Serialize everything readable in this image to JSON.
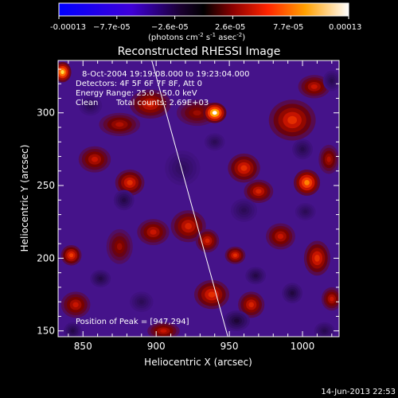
{
  "chart_data": {
    "type": "heatmap",
    "title": "Reconstructed RHESSI Image",
    "xlabel": "Heliocentric X (arcsec)",
    "ylabel": "Heliocentric Y (arcsec)",
    "xlim": [
      833,
      1025
    ],
    "ylim": [
      146,
      336
    ],
    "x_ticks": [
      850,
      900,
      950,
      1000
    ],
    "y_ticks": [
      150,
      200,
      250,
      300
    ],
    "colorbar": {
      "min": -0.00013,
      "max": 0.00013,
      "tick_labels": [
        "-0.00013",
        "−7.7e-05",
        "−2.6e-05",
        "2.6e-05",
        "7.7e-05",
        "0.00013"
      ],
      "unit_main": "(photons cm",
      "unit_exp1": "-2",
      "unit_mid": " s",
      "unit_exp2": "-1",
      "unit_mid2": " asec",
      "unit_exp3": "-2",
      "unit_end": ")"
    },
    "annotations": {
      "time_range": "8-Oct-2004 19:19:08.000 to 19:23:04.000",
      "detectors": "Detectors: 4F 5F 6F 7F 8F, Att 0",
      "energy_range": "Energy Range: 25.0 - 50.0 keV",
      "clean": "Clean",
      "total_counts": "Total counts: 2.69E+03",
      "peak_position": "Position of Peak = [947,294]"
    },
    "peak": [
      947,
      294
    ],
    "limb_line": [
      [
        897,
        336
      ],
      [
        949,
        146
      ]
    ],
    "features": [
      {
        "x": 940,
        "y": 300,
        "sx": 8,
        "sy": 7,
        "v": 1.0
      },
      {
        "x": 928,
        "y": 300,
        "sx": 14,
        "sy": 9,
        "v": 0.35
      },
      {
        "x": 836,
        "y": 328,
        "sx": 6,
        "sy": 7,
        "v": 0.9
      },
      {
        "x": 896,
        "y": 306,
        "sx": 14,
        "sy": 10,
        "v": 0.5
      },
      {
        "x": 875,
        "y": 292,
        "sx": 14,
        "sy": 8,
        "v": 0.4
      },
      {
        "x": 993,
        "y": 295,
        "sx": 16,
        "sy": 14,
        "v": 0.55
      },
      {
        "x": 1008,
        "y": 318,
        "sx": 11,
        "sy": 8,
        "v": 0.45
      },
      {
        "x": 858,
        "y": 268,
        "sx": 11,
        "sy": 9,
        "v": 0.45
      },
      {
        "x": 882,
        "y": 252,
        "sx": 10,
        "sy": 9,
        "v": 0.55
      },
      {
        "x": 960,
        "y": 262,
        "sx": 11,
        "sy": 10,
        "v": 0.55
      },
      {
        "x": 970,
        "y": 246,
        "sx": 10,
        "sy": 8,
        "v": 0.5
      },
      {
        "x": 1003,
        "y": 252,
        "sx": 9,
        "sy": 9,
        "v": 0.75
      },
      {
        "x": 1018,
        "y": 268,
        "sx": 7,
        "sy": 10,
        "v": 0.4
      },
      {
        "x": 922,
        "y": 222,
        "sx": 12,
        "sy": 11,
        "v": 0.5
      },
      {
        "x": 935,
        "y": 212,
        "sx": 8,
        "sy": 8,
        "v": 0.5
      },
      {
        "x": 954,
        "y": 202,
        "sx": 7,
        "sy": 6,
        "v": 0.55
      },
      {
        "x": 898,
        "y": 218,
        "sx": 11,
        "sy": 9,
        "v": 0.45
      },
      {
        "x": 875,
        "y": 208,
        "sx": 9,
        "sy": 12,
        "v": 0.35
      },
      {
        "x": 842,
        "y": 202,
        "sx": 7,
        "sy": 7,
        "v": 0.6
      },
      {
        "x": 985,
        "y": 215,
        "sx": 10,
        "sy": 9,
        "v": 0.45
      },
      {
        "x": 1010,
        "y": 200,
        "sx": 9,
        "sy": 12,
        "v": 0.55
      },
      {
        "x": 1020,
        "y": 172,
        "sx": 7,
        "sy": 8,
        "v": 0.45
      },
      {
        "x": 938,
        "y": 175,
        "sx": 12,
        "sy": 10,
        "v": 0.55
      },
      {
        "x": 965,
        "y": 168,
        "sx": 9,
        "sy": 9,
        "v": 0.5
      },
      {
        "x": 845,
        "y": 168,
        "sx": 10,
        "sy": 9,
        "v": 0.45
      },
      {
        "x": 905,
        "y": 150,
        "sx": 11,
        "sy": 6,
        "v": 0.45
      },
      {
        "x": 878,
        "y": 240,
        "sx": 7,
        "sy": 7,
        "v": -0.45
      },
      {
        "x": 918,
        "y": 262,
        "sx": 12,
        "sy": 12,
        "v": -0.3
      },
      {
        "x": 940,
        "y": 280,
        "sx": 7,
        "sy": 6,
        "v": -0.35
      },
      {
        "x": 1000,
        "y": 275,
        "sx": 7,
        "sy": 7,
        "v": -0.4
      },
      {
        "x": 960,
        "y": 233,
        "sx": 9,
        "sy": 8,
        "v": -0.35
      },
      {
        "x": 1002,
        "y": 232,
        "sx": 7,
        "sy": 6,
        "v": -0.35
      },
      {
        "x": 968,
        "y": 188,
        "sx": 7,
        "sy": 6,
        "v": -0.45
      },
      {
        "x": 955,
        "y": 157,
        "sx": 9,
        "sy": 7,
        "v": -0.55
      },
      {
        "x": 862,
        "y": 186,
        "sx": 7,
        "sy": 6,
        "v": -0.45
      },
      {
        "x": 843,
        "y": 150,
        "sx": 6,
        "sy": 6,
        "v": -0.45
      },
      {
        "x": 993,
        "y": 176,
        "sx": 7,
        "sy": 7,
        "v": -0.5
      },
      {
        "x": 1015,
        "y": 150,
        "sx": 7,
        "sy": 6,
        "v": -0.4
      },
      {
        "x": 855,
        "y": 305,
        "sx": 8,
        "sy": 7,
        "v": -0.35
      },
      {
        "x": 1020,
        "y": 322,
        "sx": 6,
        "sy": 7,
        "v": -0.4
      },
      {
        "x": 890,
        "y": 170,
        "sx": 8,
        "sy": 7,
        "v": -0.35
      }
    ]
  },
  "footer": {
    "timestamp": "14-Jun-2013 22:53"
  }
}
